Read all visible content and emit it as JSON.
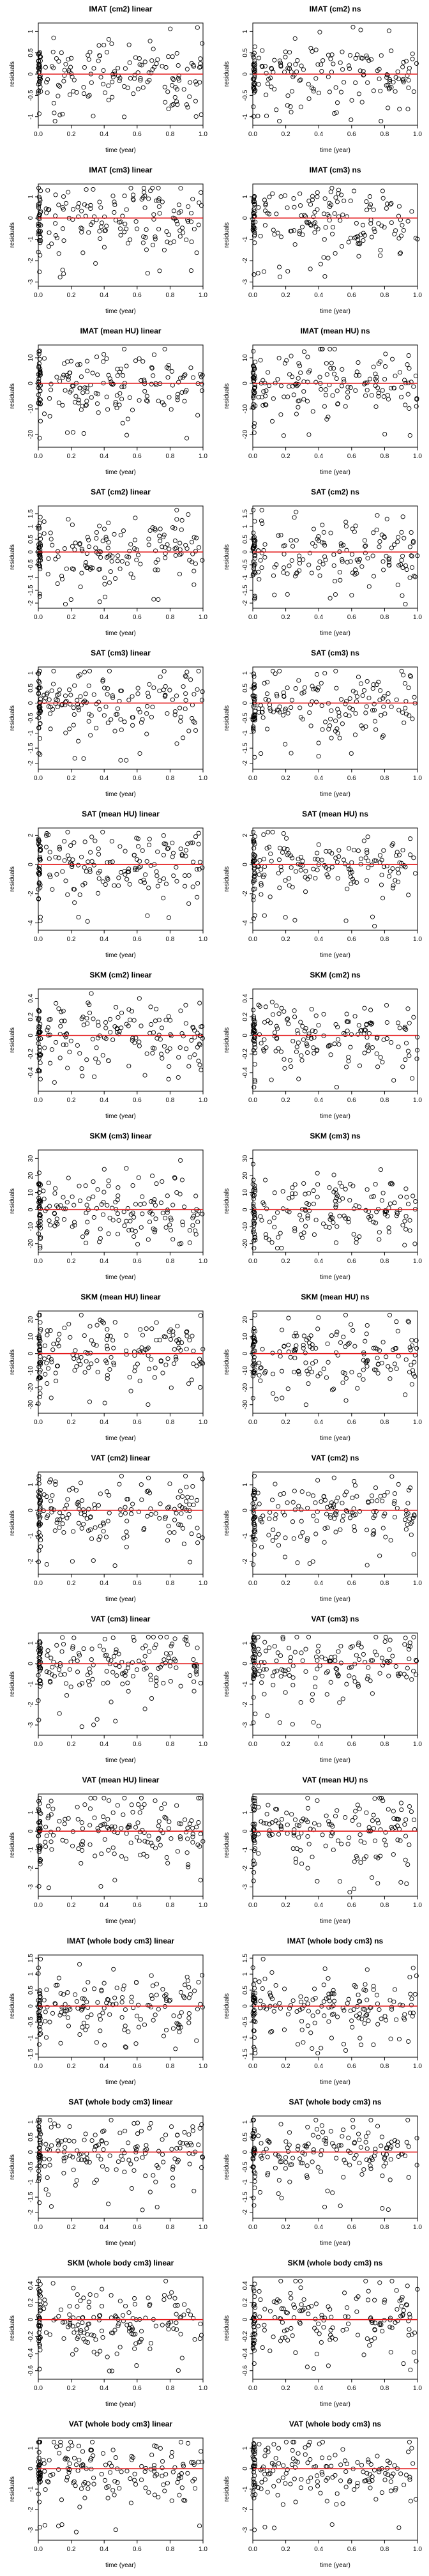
{
  "figure": {
    "background": "#ffffff",
    "point_color": "#000000",
    "reference_line_color": "#e41a1c"
  },
  "chart_data": [
    {
      "type": "scatter",
      "title": "IMAT (cm2) linear",
      "xlabel": "time (year)",
      "ylabel": "residuals",
      "xlim": [
        0,
        1
      ],
      "ylim": [
        -1.2,
        1.2
      ],
      "xticks": [
        0.0,
        0.2,
        0.4,
        0.6,
        0.8,
        1.0
      ],
      "yticks": [
        -1.0,
        -0.5,
        0.0,
        0.5,
        1.0
      ],
      "reference_line": 0,
      "n_points": 180,
      "points": []
    },
    {
      "type": "scatter",
      "title": "IMAT (cm2) ns",
      "xlabel": "time (year)",
      "ylabel": "residuals",
      "xlim": [
        0,
        1
      ],
      "ylim": [
        -1.2,
        1.2
      ],
      "xticks": [
        0.0,
        0.2,
        0.4,
        0.6,
        0.8,
        1.0
      ],
      "yticks": [
        -1.0,
        -0.5,
        0.0,
        0.5,
        1.0
      ],
      "reference_line": 0,
      "n_points": 180,
      "points": []
    },
    {
      "type": "scatter",
      "title": "IMAT (cm3) linear",
      "xlabel": "time (year)",
      "ylabel": "residuals",
      "xlim": [
        0,
        1
      ],
      "ylim": [
        -3.2,
        1.6
      ],
      "xticks": [
        0.0,
        0.2,
        0.4,
        0.6,
        0.8,
        1.0
      ],
      "yticks": [
        -3,
        -2,
        -1,
        0,
        1
      ],
      "reference_line": 0,
      "n_points": 180,
      "points": []
    },
    {
      "type": "scatter",
      "title": "IMAT (cm3) ns",
      "xlabel": "time (year)",
      "ylabel": "residuals",
      "xlim": [
        0,
        1
      ],
      "ylim": [
        -3.2,
        1.6
      ],
      "xticks": [
        0.0,
        0.2,
        0.4,
        0.6,
        0.8,
        1.0
      ],
      "yticks": [
        -3,
        -2,
        -1,
        0,
        1
      ],
      "reference_line": 0,
      "n_points": 180,
      "points": []
    },
    {
      "type": "scatter",
      "title": "IMAT (mean HU) linear",
      "xlabel": "time (year)",
      "ylabel": "residuals",
      "xlim": [
        0,
        1
      ],
      "ylim": [
        -25,
        15
      ],
      "xticks": [
        0.0,
        0.2,
        0.4,
        0.6,
        0.8,
        1.0
      ],
      "yticks": [
        -20,
        -10,
        0,
        10
      ],
      "reference_line": 0,
      "n_points": 180,
      "points": []
    },
    {
      "type": "scatter",
      "title": "IMAT (mean HU) ns",
      "xlabel": "time (year)",
      "ylabel": "residuals",
      "xlim": [
        0,
        1
      ],
      "ylim": [
        -25,
        15
      ],
      "xticks": [
        0.0,
        0.2,
        0.4,
        0.6,
        0.8,
        1.0
      ],
      "yticks": [
        -20,
        -10,
        0,
        10
      ],
      "reference_line": 0,
      "n_points": 180,
      "points": []
    },
    {
      "type": "scatter",
      "title": "SAT (cm2) linear",
      "xlabel": "time (year)",
      "ylabel": "residuals",
      "xlim": [
        0,
        1
      ],
      "ylim": [
        -2.2,
        1.8
      ],
      "xticks": [
        0.0,
        0.2,
        0.4,
        0.6,
        0.8,
        1.0
      ],
      "yticks": [
        -2.0,
        -1.5,
        -1.0,
        -0.5,
        0.0,
        0.5,
        1.0,
        1.5
      ],
      "reference_line": 0,
      "n_points": 180,
      "points": []
    },
    {
      "type": "scatter",
      "title": "SAT (cm2) ns",
      "xlabel": "time (year)",
      "ylabel": "residuals",
      "xlim": [
        0,
        1
      ],
      "ylim": [
        -2.2,
        1.8
      ],
      "xticks": [
        0.0,
        0.2,
        0.4,
        0.6,
        0.8,
        1.0
      ],
      "yticks": [
        -2.0,
        -1.5,
        -1.0,
        -0.5,
        0.0,
        0.5,
        1.0,
        1.5
      ],
      "reference_line": 0,
      "n_points": 180,
      "points": []
    },
    {
      "type": "scatter",
      "title": "SAT (cm3) linear",
      "xlabel": "time (year)",
      "ylabel": "residuals",
      "xlim": [
        0,
        1
      ],
      "ylim": [
        -2.2,
        1.2
      ],
      "xticks": [
        0.0,
        0.2,
        0.4,
        0.6,
        0.8,
        1.0
      ],
      "yticks": [
        -2.0,
        -1.5,
        -1.0,
        -0.5,
        0.0,
        0.5,
        1.0
      ],
      "reference_line": 0,
      "n_points": 180,
      "points": []
    },
    {
      "type": "scatter",
      "title": "SAT (cm3) ns",
      "xlabel": "time (year)",
      "ylabel": "residuals",
      "xlim": [
        0,
        1
      ],
      "ylim": [
        -2.2,
        1.2
      ],
      "xticks": [
        0.0,
        0.2,
        0.4,
        0.6,
        0.8,
        1.0
      ],
      "yticks": [
        -2.0,
        -1.5,
        -1.0,
        -0.5,
        0.0,
        0.5,
        1.0
      ],
      "reference_line": 0,
      "n_points": 180,
      "points": []
    },
    {
      "type": "scatter",
      "title": "SAT (mean HU) linear",
      "xlabel": "time (year)",
      "ylabel": "residuals",
      "xlim": [
        0,
        1
      ],
      "ylim": [
        -4.5,
        2.5
      ],
      "xticks": [
        0.0,
        0.2,
        0.4,
        0.6,
        0.8,
        1.0
      ],
      "yticks": [
        -4,
        -2,
        0,
        2
      ],
      "reference_line": 0,
      "n_points": 180,
      "points": []
    },
    {
      "type": "scatter",
      "title": "SAT (mean HU) ns",
      "xlabel": "time (year)",
      "ylabel": "residuals",
      "xlim": [
        0,
        1
      ],
      "ylim": [
        -4.5,
        2.5
      ],
      "xticks": [
        0.0,
        0.2,
        0.4,
        0.6,
        0.8,
        1.0
      ],
      "yticks": [
        -4,
        -2,
        0,
        2
      ],
      "reference_line": 0,
      "n_points": 180,
      "points": []
    },
    {
      "type": "scatter",
      "title": "SKM (cm2) linear",
      "xlabel": "time (year)",
      "ylabel": "residuals",
      "xlim": [
        0,
        1
      ],
      "ylim": [
        -0.6,
        0.5
      ],
      "xticks": [
        0.0,
        0.2,
        0.4,
        0.6,
        0.8,
        1.0
      ],
      "yticks": [
        -0.4,
        -0.2,
        0.0,
        0.2,
        0.4
      ],
      "reference_line": 0,
      "n_points": 180,
      "points": []
    },
    {
      "type": "scatter",
      "title": "SKM (cm2) ns",
      "xlabel": "time (year)",
      "ylabel": "residuals",
      "xlim": [
        0,
        1
      ],
      "ylim": [
        -0.6,
        0.5
      ],
      "xticks": [
        0.0,
        0.2,
        0.4,
        0.6,
        0.8,
        1.0
      ],
      "yticks": [
        -0.4,
        -0.2,
        0.0,
        0.2,
        0.4
      ],
      "reference_line": 0,
      "n_points": 180,
      "points": []
    },
    {
      "type": "scatter",
      "title": "SKM (cm3) linear",
      "xlabel": "time (year)",
      "ylabel": "residuals",
      "xlim": [
        0,
        1
      ],
      "ylim": [
        -25,
        35
      ],
      "xticks": [
        0.0,
        0.2,
        0.4,
        0.6,
        0.8,
        1.0
      ],
      "yticks": [
        -20,
        -10,
        0,
        10,
        20,
        30
      ],
      "reference_line": 0,
      "n_points": 180,
      "points": []
    },
    {
      "type": "scatter",
      "title": "SKM (cm3) ns",
      "xlabel": "time (year)",
      "ylabel": "residuals",
      "xlim": [
        0,
        1
      ],
      "ylim": [
        -25,
        35
      ],
      "xticks": [
        0.0,
        0.2,
        0.4,
        0.6,
        0.8,
        1.0
      ],
      "yticks": [
        -20,
        -10,
        0,
        10,
        20,
        30
      ],
      "reference_line": 0,
      "n_points": 180,
      "points": []
    },
    {
      "type": "scatter",
      "title": "SKM (mean HU) linear",
      "xlabel": "time (year)",
      "ylabel": "residuals",
      "xlim": [
        0,
        1
      ],
      "ylim": [
        -35,
        25
      ],
      "xticks": [
        0.0,
        0.2,
        0.4,
        0.6,
        0.8,
        1.0
      ],
      "yticks": [
        -30,
        -20,
        -10,
        0,
        10,
        20
      ],
      "reference_line": 0,
      "n_points": 180,
      "points": []
    },
    {
      "type": "scatter",
      "title": "SKM (mean HU) ns",
      "xlabel": "time (year)",
      "ylabel": "residuals",
      "xlim": [
        0,
        1
      ],
      "ylim": [
        -35,
        25
      ],
      "xticks": [
        0.0,
        0.2,
        0.4,
        0.6,
        0.8,
        1.0
      ],
      "yticks": [
        -30,
        -20,
        -10,
        0,
        10,
        20
      ],
      "reference_line": 0,
      "n_points": 180,
      "points": []
    },
    {
      "type": "scatter",
      "title": "VAT (cm2) linear",
      "xlabel": "time (year)",
      "ylabel": "residuals",
      "xlim": [
        0,
        1
      ],
      "ylim": [
        -2.5,
        1.5
      ],
      "xticks": [
        0.0,
        0.2,
        0.4,
        0.6,
        0.8,
        1.0
      ],
      "yticks": [
        -2,
        -1,
        0,
        1
      ],
      "reference_line": 0,
      "n_points": 180,
      "points": []
    },
    {
      "type": "scatter",
      "title": "VAT (cm2) ns",
      "xlabel": "time (year)",
      "ylabel": "residuals",
      "xlim": [
        0,
        1
      ],
      "ylim": [
        -2.5,
        1.5
      ],
      "xticks": [
        0.0,
        0.2,
        0.4,
        0.6,
        0.8,
        1.0
      ],
      "yticks": [
        -2,
        -1,
        0,
        1
      ],
      "reference_line": 0,
      "n_points": 180,
      "points": []
    },
    {
      "type": "scatter",
      "title": "VAT (cm3) linear",
      "xlabel": "time (year)",
      "ylabel": "residuals",
      "xlim": [
        0,
        1
      ],
      "ylim": [
        -3.5,
        1.5
      ],
      "xticks": [
        0.0,
        0.2,
        0.4,
        0.6,
        0.8,
        1.0
      ],
      "yticks": [
        -3,
        -2,
        -1,
        0,
        1
      ],
      "reference_line": 0,
      "n_points": 180,
      "points": []
    },
    {
      "type": "scatter",
      "title": "VAT (cm3) ns",
      "xlabel": "time (year)",
      "ylabel": "residuals",
      "xlim": [
        0,
        1
      ],
      "ylim": [
        -3.5,
        1.5
      ],
      "xticks": [
        0.0,
        0.2,
        0.4,
        0.6,
        0.8,
        1.0
      ],
      "yticks": [
        -3,
        -2,
        -1,
        0,
        1
      ],
      "reference_line": 0,
      "n_points": 180,
      "points": []
    },
    {
      "type": "scatter",
      "title": "VAT (mean HU) linear",
      "xlabel": "time (year)",
      "ylabel": "residuals",
      "xlim": [
        0,
        1
      ],
      "ylim": [
        -3.5,
        2.0
      ],
      "xticks": [
        0.0,
        0.2,
        0.4,
        0.6,
        0.8,
        1.0
      ],
      "yticks": [
        -3,
        -2,
        -1,
        0,
        1
      ],
      "reference_line": 0,
      "n_points": 180,
      "points": []
    },
    {
      "type": "scatter",
      "title": "VAT (mean HU) ns",
      "xlabel": "time (year)",
      "ylabel": "residuals",
      "xlim": [
        0,
        1
      ],
      "ylim": [
        -3.5,
        2.0
      ],
      "xticks": [
        0.0,
        0.2,
        0.4,
        0.6,
        0.8,
        1.0
      ],
      "yticks": [
        -3,
        -2,
        -1,
        0,
        1
      ],
      "reference_line": 0,
      "n_points": 180,
      "points": []
    },
    {
      "type": "scatter",
      "title": "IMAT (whole body cm3) linear",
      "xlabel": "time (year)",
      "ylabel": "residuals",
      "xlim": [
        0,
        1
      ],
      "ylim": [
        -1.6,
        1.6
      ],
      "xticks": [
        0.0,
        0.2,
        0.4,
        0.6,
        0.8,
        1.0
      ],
      "yticks": [
        -1.5,
        -1.0,
        -0.5,
        0.0,
        0.5,
        1.0,
        1.5
      ],
      "reference_line": 0,
      "n_points": 180,
      "points": []
    },
    {
      "type": "scatter",
      "title": "IMAT (whole body cm3) ns",
      "xlabel": "time (year)",
      "ylabel": "residuals",
      "xlim": [
        0,
        1
      ],
      "ylim": [
        -1.6,
        1.6
      ],
      "xticks": [
        0.0,
        0.2,
        0.4,
        0.6,
        0.8,
        1.0
      ],
      "yticks": [
        -1.5,
        -1.0,
        -0.5,
        0.0,
        0.5,
        1.0,
        1.5
      ],
      "reference_line": 0,
      "n_points": 180,
      "points": []
    },
    {
      "type": "scatter",
      "title": "SAT (whole body cm3) linear",
      "xlabel": "time (year)",
      "ylabel": "residuals",
      "xlim": [
        0,
        1
      ],
      "ylim": [
        -2.2,
        1.2
      ],
      "xticks": [
        0.0,
        0.2,
        0.4,
        0.6,
        0.8,
        1.0
      ],
      "yticks": [
        -2.0,
        -1.5,
        -1.0,
        -0.5,
        0.0,
        0.5,
        1.0
      ],
      "reference_line": 0,
      "n_points": 180,
      "points": []
    },
    {
      "type": "scatter",
      "title": "SAT (whole body cm3) ns",
      "xlabel": "time (year)",
      "ylabel": "residuals",
      "xlim": [
        0,
        1
      ],
      "ylim": [
        -2.2,
        1.2
      ],
      "xticks": [
        0.0,
        0.2,
        0.4,
        0.6,
        0.8,
        1.0
      ],
      "yticks": [
        -2.0,
        -1.5,
        -1.0,
        -0.5,
        0.0,
        0.5,
        1.0
      ],
      "reference_line": 0,
      "n_points": 180,
      "points": []
    },
    {
      "type": "scatter",
      "title": "SKM (whole body cm3) linear",
      "xlabel": "time (year)",
      "ylabel": "residuals",
      "xlim": [
        0,
        1
      ],
      "ylim": [
        -0.7,
        0.5
      ],
      "xticks": [
        0.0,
        0.2,
        0.4,
        0.6,
        0.8,
        1.0
      ],
      "yticks": [
        -0.6,
        -0.4,
        -0.2,
        0.0,
        0.2,
        0.4
      ],
      "reference_line": 0,
      "n_points": 180,
      "points": []
    },
    {
      "type": "scatter",
      "title": "SKM (whole body cm3) ns",
      "xlabel": "time (year)",
      "ylabel": "residuals",
      "xlim": [
        0,
        1
      ],
      "ylim": [
        -0.7,
        0.5
      ],
      "xticks": [
        0.0,
        0.2,
        0.4,
        0.6,
        0.8,
        1.0
      ],
      "yticks": [
        -0.6,
        -0.4,
        -0.2,
        0.0,
        0.2,
        0.4
      ],
      "reference_line": 0,
      "n_points": 180,
      "points": []
    },
    {
      "type": "scatter",
      "title": "VAT (whole body cm3) linear",
      "xlabel": "time (year)",
      "ylabel": "residuals",
      "xlim": [
        0,
        1
      ],
      "ylim": [
        -3.5,
        1.5
      ],
      "xticks": [
        0.0,
        0.2,
        0.4,
        0.6,
        0.8,
        1.0
      ],
      "yticks": [
        -3,
        -2,
        -1,
        0,
        1
      ],
      "reference_line": 0,
      "n_points": 180,
      "points": []
    },
    {
      "type": "scatter",
      "title": "VAT (whole body cm3) ns",
      "xlabel": "time (year)",
      "ylabel": "residuals",
      "xlim": [
        0,
        1
      ],
      "ylim": [
        -3.5,
        1.5
      ],
      "xticks": [
        0.0,
        0.2,
        0.4,
        0.6,
        0.8,
        1.0
      ],
      "yticks": [
        -3,
        -2,
        -1,
        0,
        1
      ],
      "reference_line": 0,
      "n_points": 180,
      "points": []
    }
  ]
}
